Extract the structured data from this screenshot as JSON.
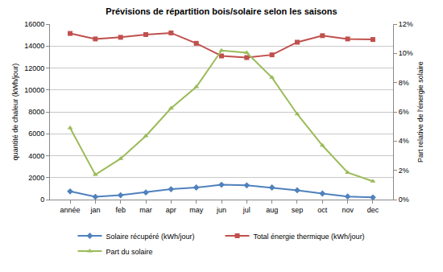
{
  "chart_data": {
    "type": "line",
    "title": "Prévisions de répartition bois/solaire selon les saisons",
    "x_label": null,
    "y_label": "quantité de chaleur (kWh/jour)",
    "y2_label": "Part relative de l'énergie solaire",
    "categories": [
      "année",
      "jan",
      "feb",
      "mar",
      "apr",
      "may",
      "jun",
      "jul",
      "aug",
      "sep",
      "oct",
      "nov",
      "dec"
    ],
    "series": [
      {
        "name": "Solaire récupéré (kWh/jour)",
        "color": "#4f81bd",
        "marker": "diamond",
        "values": [
          750,
          250,
          400,
          650,
          950,
          1100,
          1350,
          1300,
          1100,
          850,
          550,
          280,
          200
        ]
      },
      {
        "name": "Total énergie thermique (kWh/jour)",
        "color": "#c0504d",
        "marker": "square",
        "values": [
          15150,
          14650,
          14800,
          15050,
          15200,
          14250,
          13100,
          12950,
          13200,
          14350,
          14950,
          14650,
          14600
        ]
      },
      {
        "name": "Part du solaire",
        "color": "#9bbb59",
        "marker": "triangle",
        "axis": "y2",
        "values": [
          4.9,
          1.7,
          2.8,
          4.35,
          6.25,
          7.7,
          10.2,
          10.05,
          8.35,
          5.85,
          3.7,
          1.85,
          1.25
        ]
      }
    ],
    "ylim": [
      0,
      16000
    ],
    "yticks": [
      0,
      2000,
      4000,
      6000,
      8000,
      10000,
      12000,
      14000,
      16000
    ],
    "y2lim": [
      0,
      12
    ],
    "y2ticks": [
      {
        "value": 0,
        "label": "0%"
      },
      {
        "value": 2,
        "label": "2%"
      },
      {
        "value": 4,
        "label": "4%"
      },
      {
        "value": 6,
        "label": "6%"
      },
      {
        "value": 8,
        "label": "8%"
      },
      {
        "value": 10,
        "label": "10%"
      },
      {
        "value": 12,
        "label": "12%"
      }
    ],
    "grid": true,
    "legend": "bottom"
  }
}
